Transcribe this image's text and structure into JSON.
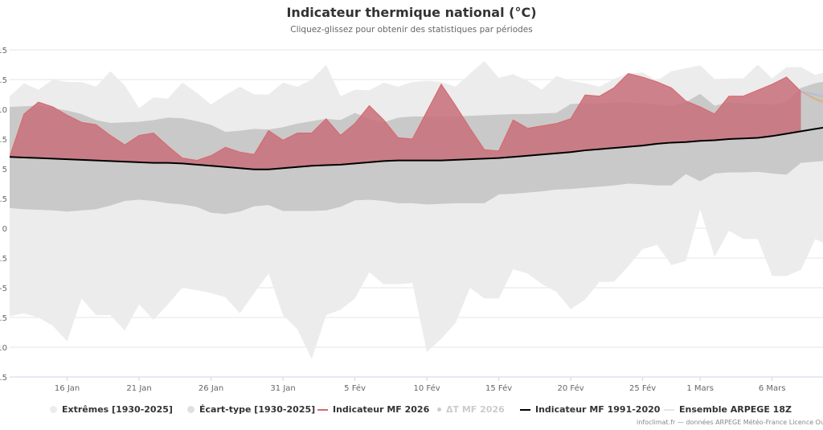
{
  "title": "Indicateur thermique national (°C)",
  "subtitle": "Cliquez-glissez pour obtenir des statistiques par périodes",
  "legend": [
    {
      "label": "Extrêmes [1930-2025]",
      "symbol": "dot",
      "color": "#ececec",
      "muted": false
    },
    {
      "label": "Écart-type [1930-2025]",
      "symbol": "dot",
      "color": "#e0e0e0",
      "muted": false
    },
    {
      "label": "Indicateur MF 2026",
      "symbol": "line",
      "color": "#d9696f",
      "muted": false
    },
    {
      "label": "ΔT MF 2026",
      "symbol": "dot",
      "color": "#cccccc",
      "muted": true
    },
    {
      "label": "Indicateur MF 1991-2020",
      "symbol": "line",
      "color": "#000000",
      "muted": false
    },
    {
      "label": "Ensemble ARPEGE 18Z",
      "symbol": "line",
      "color": "#e6e6e6",
      "muted": false
    }
  ],
  "footer": "infoclimat.fr — données ARPEGE Météo-France Licence Ouv",
  "chart_data": {
    "type": "area",
    "title": "Indicateur thermique national (°C)",
    "x_start": "2026-01-12",
    "x_step": "1 day",
    "xlim": [
      "2026-01-12",
      "2026-03-10"
    ],
    "ylim": [
      -12.5,
      15
    ],
    "yticks": [
      15,
      12.5,
      10,
      7.5,
      5,
      2.5,
      0,
      -2.5,
      -5,
      -7.5,
      -10,
      -12.5
    ],
    "ytick_labels": [
      "15",
      "12.5",
      "10",
      "7.5",
      "5",
      "2.5",
      "0",
      "-2.5",
      "-5",
      "-7.5",
      "-10",
      "-12.5"
    ],
    "xticks": [
      {
        "date": "2026-01-16",
        "label": "16 Jan"
      },
      {
        "date": "2026-01-21",
        "label": "21 Jan"
      },
      {
        "date": "2026-01-26",
        "label": "26 Jan"
      },
      {
        "date": "2026-01-31",
        "label": "31 Jan"
      },
      {
        "date": "2026-02-05",
        "label": "5 Fév"
      },
      {
        "date": "2026-02-10",
        "label": "10 Fév"
      },
      {
        "date": "2026-02-15",
        "label": "15 Fév"
      },
      {
        "date": "2026-02-20",
        "label": "20 Fév"
      },
      {
        "date": "2026-02-25",
        "label": "25 Fév"
      },
      {
        "date": "2026-03-01",
        "label": "1 Mars"
      },
      {
        "date": "2026-03-06",
        "label": "6 Mars"
      }
    ],
    "grid": true,
    "legend_position": "bottom",
    "colors": {
      "extremes": "#ececec",
      "stddev": "#c9c9c9",
      "mf2026_fill": "#c8707a",
      "mf2026_line": "#d9696f",
      "normal": "#000000",
      "ensemble": [
        "#c9d48a",
        "#9fc4d6",
        "#e0b080",
        "#b8b8e0",
        "#d8a0a0"
      ]
    },
    "series": [
      {
        "name": "Extrêmes [1930-2025]",
        "kind": "range",
        "high": [
          11.1,
          12.2,
          11.65,
          12.5,
          12.3,
          12.3,
          11.9,
          13.2,
          12.0,
          10.1,
          11.0,
          10.9,
          12.25,
          11.4,
          10.4,
          11.2,
          11.9,
          11.25,
          11.25,
          12.25,
          11.9,
          12.5,
          13.75,
          11.1,
          11.65,
          11.6,
          12.25,
          11.9,
          12.3,
          12.4,
          12.3,
          11.9,
          13.0,
          14.05,
          12.65,
          12.95,
          12.4,
          11.65,
          12.8,
          12.4,
          12.2,
          11.9,
          12.55,
          13.0,
          13.1,
          12.4,
          13.2,
          13.45,
          13.7,
          12.55,
          12.6,
          12.6,
          13.75,
          12.6,
          13.55,
          13.55,
          12.9,
          13.2
        ],
        "low": [
          -7.4,
          -7.15,
          -7.5,
          -8.2,
          -9.5,
          -5.9,
          -7.3,
          -7.3,
          -8.6,
          -6.4,
          -7.7,
          -6.4,
          -5.0,
          -5.2,
          -5.45,
          -5.8,
          -7.15,
          -5.45,
          -3.8,
          -7.3,
          -8.5,
          -11.0,
          -7.3,
          -6.85,
          -5.9,
          -3.7,
          -4.7,
          -4.7,
          -4.6,
          -10.4,
          -9.3,
          -7.95,
          -5.0,
          -5.9,
          -5.9,
          -3.45,
          -3.8,
          -4.7,
          -5.35,
          -6.8,
          -6.0,
          -4.5,
          -4.5,
          -3.2,
          -1.75,
          -1.4,
          -3.1,
          -2.75,
          1.6,
          -2.4,
          -0.2,
          -0.9,
          -0.9,
          -4.0,
          -4.0,
          -3.5,
          -0.9,
          -1.5
        ]
      },
      {
        "name": "Écart-type [1930-2025]",
        "kind": "range",
        "high": [
          10.2,
          10.25,
          10.3,
          10.1,
          9.9,
          9.6,
          9.1,
          8.85,
          8.9,
          8.95,
          9.1,
          9.3,
          9.25,
          9.0,
          8.7,
          8.1,
          8.2,
          8.35,
          8.3,
          8.5,
          8.8,
          9.0,
          9.2,
          9.1,
          9.7,
          9.2,
          8.9,
          9.3,
          9.4,
          9.4,
          9.4,
          9.4,
          9.45,
          9.5,
          9.55,
          9.6,
          9.6,
          9.65,
          9.7,
          10.45,
          10.5,
          10.5,
          10.55,
          10.6,
          10.5,
          10.4,
          10.3,
          10.6,
          11.3,
          10.3,
          10.6,
          10.5,
          10.45,
          10.4,
          10.6,
          11.8,
          12.2,
          12.4
        ],
        "low": [
          1.7,
          1.6,
          1.55,
          1.5,
          1.4,
          1.5,
          1.6,
          1.9,
          2.3,
          2.4,
          2.3,
          2.1,
          2.0,
          1.8,
          1.3,
          1.2,
          1.4,
          1.85,
          1.95,
          1.45,
          1.45,
          1.45,
          1.5,
          1.8,
          2.35,
          2.4,
          2.3,
          2.1,
          2.1,
          2.0,
          2.05,
          2.1,
          2.1,
          2.1,
          2.85,
          2.9,
          3.0,
          3.1,
          3.25,
          3.3,
          3.4,
          3.5,
          3.6,
          3.75,
          3.7,
          3.6,
          3.6,
          4.55,
          3.95,
          4.6,
          4.7,
          4.7,
          4.75,
          4.6,
          4.5,
          5.5,
          5.6,
          5.7
        ]
      },
      {
        "name": "Indicateur MF 2026",
        "kind": "line",
        "values": [
          6.0,
          9.6,
          10.6,
          10.2,
          9.5,
          8.9,
          8.7,
          7.8,
          7.0,
          7.8,
          8.0,
          6.9,
          5.9,
          5.7,
          6.1,
          6.8,
          6.4,
          6.2,
          8.2,
          7.4,
          8.0,
          8.0,
          9.2,
          7.8,
          8.8,
          10.3,
          9.1,
          7.6,
          7.5,
          9.8,
          12.1,
          10.3,
          8.4,
          6.6,
          6.5,
          9.1,
          8.4,
          8.6,
          8.8,
          9.2,
          11.2,
          11.1,
          11.8,
          13.0,
          12.7,
          12.3,
          11.8,
          10.7,
          10.2,
          9.6,
          11.1,
          11.1,
          11.6,
          12.1,
          12.7,
          11.5
        ]
      },
      {
        "name": "Indicateur MF 1991-2020",
        "kind": "line",
        "values": [
          6.0,
          5.95,
          5.9,
          5.85,
          5.8,
          5.75,
          5.7,
          5.65,
          5.6,
          5.55,
          5.5,
          5.5,
          5.45,
          5.35,
          5.25,
          5.15,
          5.05,
          4.95,
          4.95,
          5.05,
          5.15,
          5.25,
          5.3,
          5.35,
          5.45,
          5.55,
          5.65,
          5.7,
          5.7,
          5.7,
          5.7,
          5.75,
          5.8,
          5.85,
          5.9,
          6.0,
          6.1,
          6.2,
          6.3,
          6.4,
          6.55,
          6.65,
          6.75,
          6.85,
          6.95,
          7.1,
          7.2,
          7.25,
          7.35,
          7.4,
          7.5,
          7.55,
          7.6,
          7.75,
          7.95,
          8.15,
          8.35,
          8.55
        ]
      },
      {
        "name": "Ensemble ARPEGE 18Z",
        "kind": "lines",
        "start_index": 55,
        "members": [
          [
            11.5,
            11.0,
            10.6
          ],
          [
            11.5,
            11.2,
            10.9
          ],
          [
            11.5,
            10.8,
            10.3
          ],
          [
            11.5,
            11.3,
            11.1
          ],
          [
            11.5,
            10.9,
            10.5
          ]
        ]
      }
    ]
  }
}
